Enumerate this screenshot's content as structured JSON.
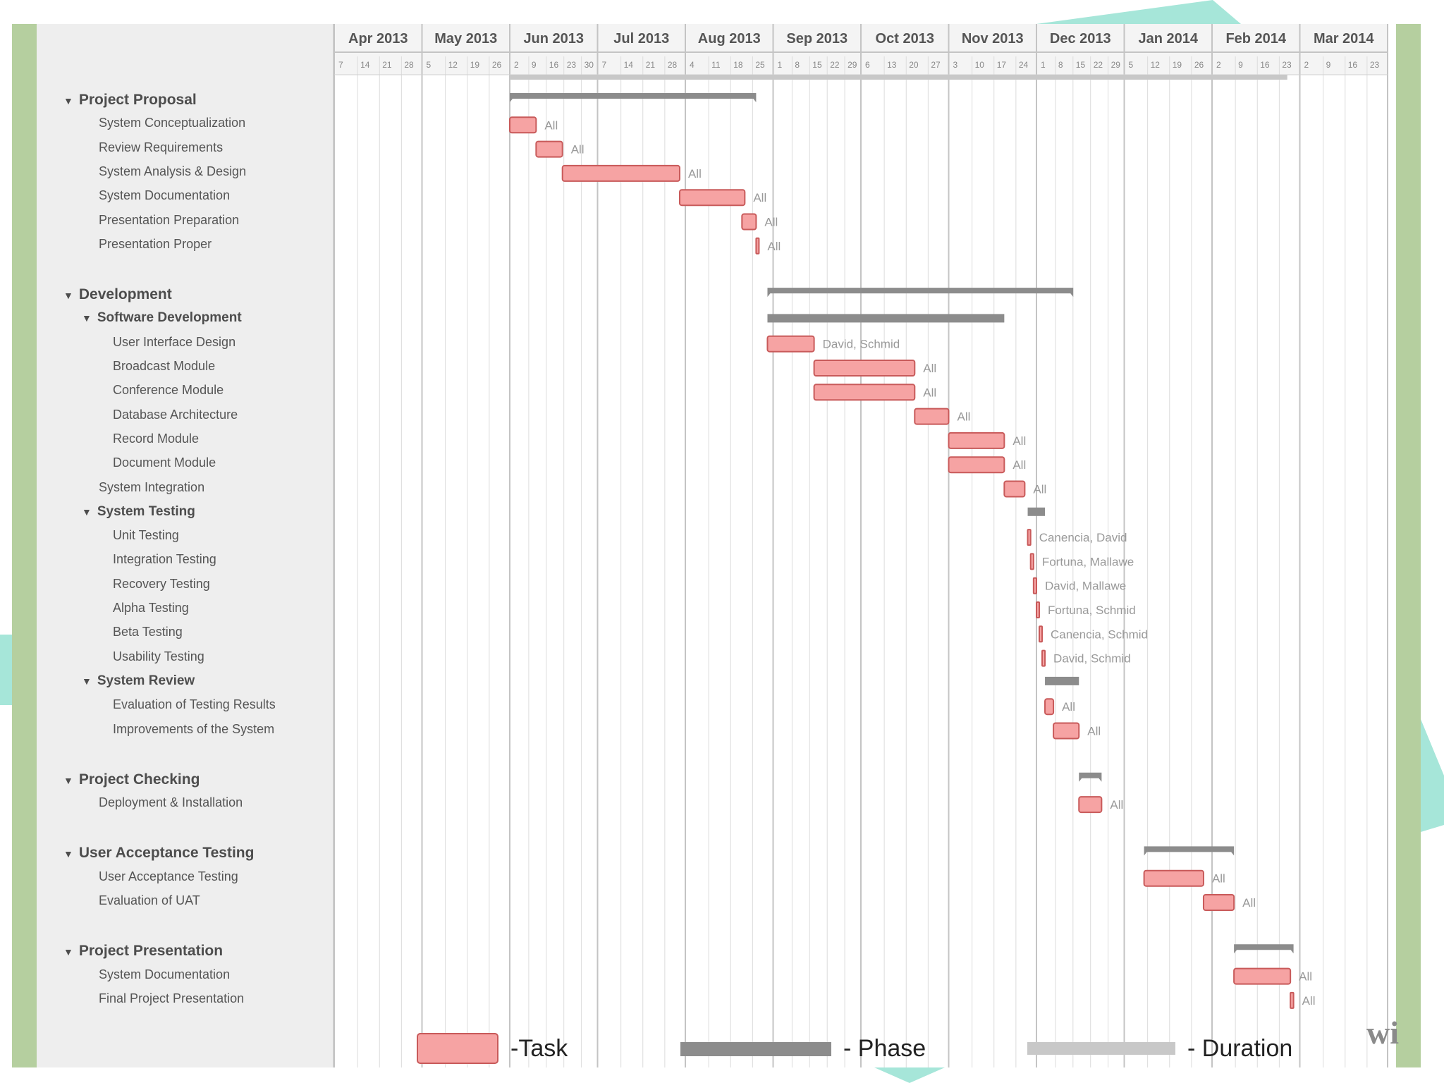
{
  "chart_data": {
    "type": "gantt",
    "months": [
      "Apr 2013",
      "May 2013",
      "Jun 2013",
      "Jul 2013",
      "Aug 2013",
      "Sep 2013",
      "Oct 2013",
      "Nov 2013",
      "Dec 2013",
      "Jan 2014",
      "Feb 2014",
      "Mar 2014"
    ],
    "week_ticks": [
      [
        "7",
        "14",
        "21",
        "28"
      ],
      [
        "5",
        "12",
        "19",
        "26"
      ],
      [
        "2",
        "9",
        "16",
        "23",
        "30"
      ],
      [
        "7",
        "14",
        "21",
        "28"
      ],
      [
        "4",
        "11",
        "18",
        "25"
      ],
      [
        "1",
        "8",
        "15",
        "22",
        "29"
      ],
      [
        "6",
        "13",
        "20",
        "27"
      ],
      [
        "3",
        "10",
        "17",
        "24"
      ],
      [
        "1",
        "8",
        "15",
        "22",
        "29"
      ],
      [
        "5",
        "12",
        "19",
        "26"
      ],
      [
        "2",
        "9",
        "16",
        "23"
      ],
      [
        "2",
        "9",
        "16",
        "23"
      ]
    ],
    "duration_bar": {
      "start": "2013-06-01",
      "end": "2014-02-25"
    },
    "groups": [
      {
        "name": "Project Proposal",
        "phase": [
          "2013-06-01",
          "2013-08-26"
        ],
        "items": [
          {
            "name": "System Conceptualization",
            "start": "2013-06-01",
            "end": "2013-06-10",
            "resource": "All"
          },
          {
            "name": "Review Requirements",
            "start": "2013-06-10",
            "end": "2013-06-19",
            "resource": "All"
          },
          {
            "name": "System Analysis & Design",
            "start": "2013-06-19",
            "end": "2013-07-30",
            "resource": "All"
          },
          {
            "name": "System Documentation",
            "start": "2013-07-30",
            "end": "2013-08-22",
            "resource": "All"
          },
          {
            "name": "Presentation Preparation",
            "start": "2013-08-21",
            "end": "2013-08-26",
            "resource": "All"
          },
          {
            "name": "Presentation Proper",
            "start": "2013-08-26",
            "end": "2013-08-27",
            "resource": "All"
          }
        ]
      },
      {
        "name": "Development",
        "phase": [
          "2013-08-30",
          "2013-12-14"
        ],
        "items": [
          {
            "name": "Software Development",
            "summary": true,
            "start": "2013-08-30",
            "end": "2013-11-20"
          },
          {
            "name": "User Interface Design",
            "start": "2013-08-30",
            "end": "2013-09-15",
            "resource": "David, Schmid"
          },
          {
            "name": "Broadcast Module",
            "start": "2013-09-15",
            "end": "2013-10-20",
            "resource": "All"
          },
          {
            "name": "Conference Module",
            "start": "2013-09-15",
            "end": "2013-10-20",
            "resource": "All"
          },
          {
            "name": "Database Architecture",
            "start": "2013-10-20",
            "end": "2013-11-01",
            "resource": "All"
          },
          {
            "name": "Record Module",
            "start": "2013-11-01",
            "end": "2013-11-20",
            "resource": "All"
          },
          {
            "name": "Document Module",
            "start": "2013-11-01",
            "end": "2013-11-20",
            "resource": "All"
          },
          {
            "name": "System Integration",
            "start": "2013-11-20",
            "end": "2013-11-27",
            "resource": "All"
          },
          {
            "name": "System Testing",
            "summary": true,
            "start": "2013-11-28",
            "end": "2013-12-04"
          },
          {
            "name": "Unit Testing",
            "start": "2013-11-28",
            "end": "2013-11-29",
            "resource": "Canencia, David"
          },
          {
            "name": "Integration Testing",
            "start": "2013-11-29",
            "end": "2013-11-30",
            "resource": "Fortuna, Mallawe"
          },
          {
            "name": "Recovery Testing",
            "start": "2013-11-30",
            "end": "2013-12-01",
            "resource": "David, Mallawe"
          },
          {
            "name": "Alpha Testing",
            "start": "2013-12-01",
            "end": "2013-12-02",
            "resource": "Fortuna, Schmid"
          },
          {
            "name": "Beta Testing",
            "start": "2013-12-02",
            "end": "2013-12-03",
            "resource": "Canencia, Schmid"
          },
          {
            "name": "Usability Testing",
            "start": "2013-12-03",
            "end": "2013-12-04",
            "resource": "David, Schmid"
          },
          {
            "name": "System Review",
            "summary": true,
            "start": "2013-12-04",
            "end": "2013-12-16"
          },
          {
            "name": "Evaluation of Testing Results",
            "start": "2013-12-04",
            "end": "2013-12-07",
            "resource": "All"
          },
          {
            "name": "Improvements of the System",
            "start": "2013-12-07",
            "end": "2013-12-16",
            "resource": "All"
          }
        ]
      },
      {
        "name": "Project Checking",
        "phase": [
          "2013-12-16",
          "2013-12-24"
        ],
        "items": [
          {
            "name": "Deployment & Installation",
            "start": "2013-12-16",
            "end": "2013-12-24",
            "resource": "All"
          }
        ]
      },
      {
        "name": "User Acceptance Testing",
        "phase": [
          "2014-01-08",
          "2014-02-08"
        ],
        "items": [
          {
            "name": "User Acceptance Testing",
            "start": "2014-01-08",
            "end": "2014-01-29",
            "resource": "All"
          },
          {
            "name": "Evaluation of UAT",
            "start": "2014-01-29",
            "end": "2014-02-08",
            "resource": "All"
          }
        ]
      },
      {
        "name": "Project Presentation",
        "phase": [
          "2014-02-08",
          "2014-02-27"
        ],
        "items": [
          {
            "name": "System Documentation",
            "start": "2014-02-08",
            "end": "2014-02-26",
            "resource": "All"
          },
          {
            "name": "Final Project Presentation",
            "start": "2014-02-26",
            "end": "2014-02-27",
            "resource": "All"
          }
        ]
      }
    ],
    "legend": [
      {
        "kind": "task",
        "label": "-Task"
      },
      {
        "kind": "phase",
        "label": "- Phase"
      },
      {
        "kind": "duration",
        "label": "- Duration"
      }
    ]
  },
  "watermark": "wi",
  "colors": {
    "task_fill": "#f6a3a3",
    "task_stroke": "#c85a5a",
    "phase": "#8c8c8c",
    "duration": "#c8c8c8",
    "frame": "#b5cf9f",
    "accent": "#a6e6d9",
    "panel": "#eeeeee",
    "grid": "#dcdcdc",
    "text": "#555555"
  }
}
